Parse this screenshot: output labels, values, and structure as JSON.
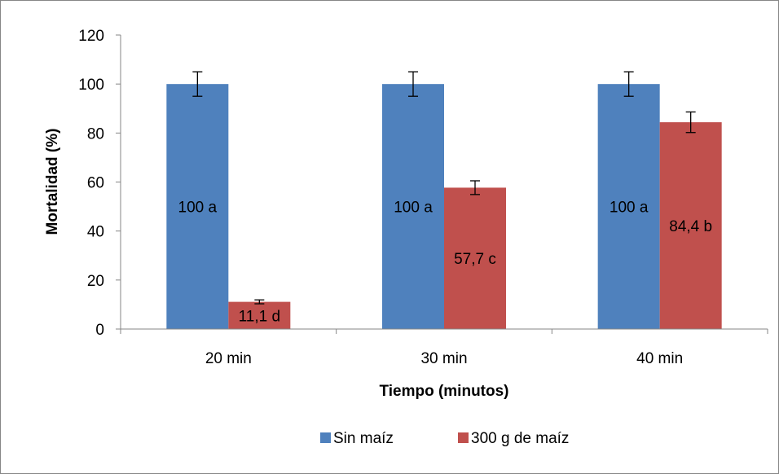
{
  "chart_data": {
    "type": "bar",
    "categories": [
      "20 min",
      "30 min",
      "40 min"
    ],
    "series": [
      {
        "name": "Sin maíz",
        "color": "#4F81BD",
        "values": [
          100,
          100,
          100
        ],
        "errors": [
          5,
          5,
          5
        ],
        "labels": [
          "100  a",
          "100  a",
          "100  a"
        ]
      },
      {
        "name": "300 g de maíz",
        "color": "#C0504D",
        "values": [
          11.1,
          57.7,
          84.4
        ],
        "errors": [
          0.8,
          2.8,
          4.2
        ],
        "labels": [
          "11,1  d",
          "57,7  c",
          "84,4  b"
        ]
      }
    ],
    "title": "",
    "xlabel": "Tiempo (minutos)",
    "ylabel": "Mortalidad (%)",
    "ylim": [
      0,
      120
    ],
    "yticks": [
      0,
      20,
      40,
      60,
      80,
      100,
      120
    ],
    "grid": false,
    "legend": "bottom"
  }
}
